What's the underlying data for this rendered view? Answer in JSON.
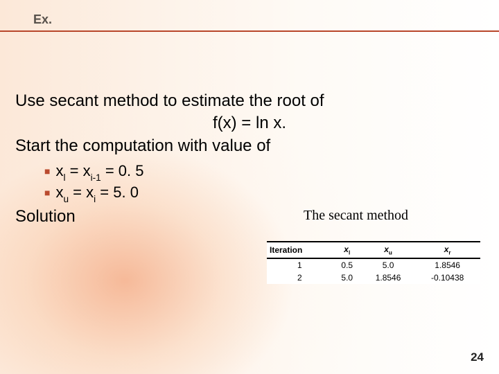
{
  "header": {
    "title": "Ex."
  },
  "problem": {
    "line1": "Use secant method to estimate the root of",
    "line2": "f(x) = ln x.",
    "line3": "Start the computation with value of"
  },
  "bullets": {
    "b1": {
      "var": "x",
      "sub": "l",
      "eq": " = x",
      "sub2": "i-1",
      "rest": " = 0. 5"
    },
    "b2": {
      "var": "x",
      "sub": "u",
      "eq": " = x",
      "sub2": "i",
      "rest": " = 5. 0"
    }
  },
  "solution_label": "Solution",
  "method_label": "The secant method",
  "table": {
    "headers": {
      "c0": "Iteration",
      "c1_base": "x",
      "c1_sub": "l",
      "c2_base": "x",
      "c2_sub": "u",
      "c3_base": "x",
      "c3_sub": "r"
    },
    "rows": [
      {
        "c0": "1",
        "c1": "0.5",
        "c2": "5.0",
        "c3": "1.8546"
      },
      {
        "c0": "2",
        "c1": "5.0",
        "c2": "1.8546",
        "c3": "-0.10438"
      }
    ]
  },
  "page_number": "24",
  "colors": {
    "rule": "#b8462a",
    "bullet": "#ba4a2e",
    "text": "#000000",
    "header_text": "#58524c"
  }
}
